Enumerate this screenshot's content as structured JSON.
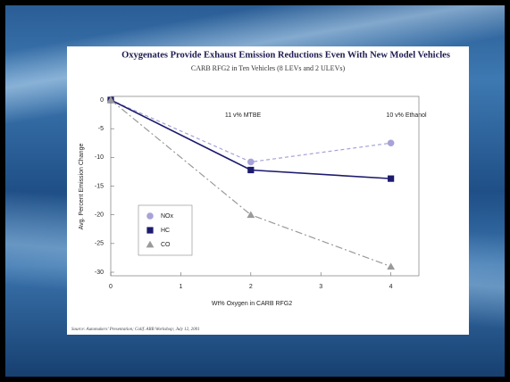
{
  "chart_data": {
    "type": "line",
    "title": "Oxygenates Provide Exhaust Emission Reductions Even With New Model Vehicles",
    "subtitle": "CARB RFG2 in Ten Vehicles (8 LEVs and 2 ULEVs)",
    "x_label": "Wt% Oxygen in CARB RFG2",
    "y_label": "Avg. Percent Emission Change",
    "annotations": [
      "11 v% MTBE",
      "10 v% Ethanol"
    ],
    "source": "Source: Automakers' Presentation; Calif. ARB Workshop; July 12, 2001",
    "x": [
      0,
      2,
      4
    ],
    "series": [
      {
        "name": "NOx",
        "color": "#a7a2d8",
        "marker": "circle",
        "dash": "4 3",
        "values": [
          0,
          -10.8,
          -7.5
        ]
      },
      {
        "name": "HC",
        "color": "#1c1b6e",
        "marker": "square",
        "dash": "none",
        "values": [
          0,
          -12.2,
          -13.7
        ]
      },
      {
        "name": "CO",
        "color": "#9a9a9a",
        "marker": "triangle",
        "dash": "8 3 2 3",
        "values": [
          0,
          -20,
          -29
        ]
      }
    ],
    "xlim": [
      0,
      4.4
    ],
    "xticks": [
      0,
      1,
      2,
      3,
      4
    ],
    "ylim": [
      -30,
      0
    ],
    "yticks": [
      0,
      -5,
      -10,
      -15,
      -20,
      -25,
      -30
    ],
    "grid": false
  }
}
